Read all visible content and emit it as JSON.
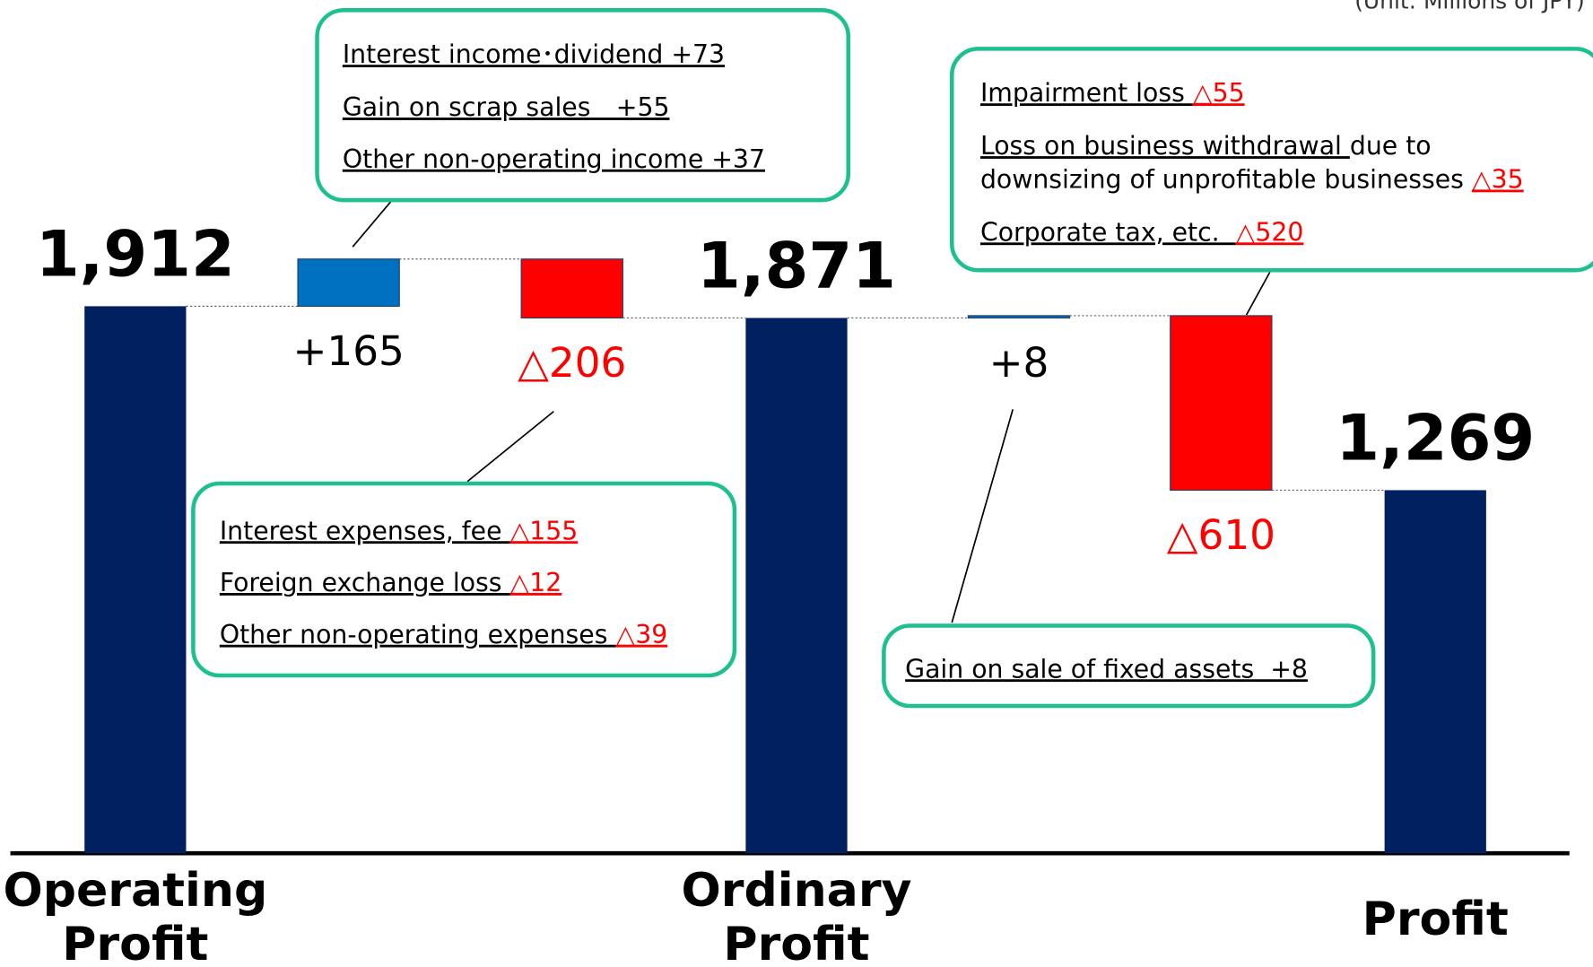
{
  "chart_data": {
    "type": "waterfall",
    "subtitle": "(Unit: Millions of JPY)",
    "categories": [
      "Operating Profit",
      null,
      null,
      "Ordinary Profit",
      null,
      null,
      "Profit"
    ],
    "measures": [
      "total",
      "relative",
      "relative",
      "total",
      "relative",
      "relative",
      "total"
    ],
    "values": [
      1912,
      165,
      -206,
      1871,
      8,
      -610,
      1269
    ],
    "value_labels": [
      "1,912",
      "+165",
      "△206",
      "1,871",
      "+8",
      "△610",
      "1,269"
    ],
    "colors": {
      "total": "#002060",
      "increase": "#0070c0",
      "decrease": "#ff0000"
    },
    "label_colors": {
      "total": "#000000",
      "increase": "#000000",
      "decrease": "#ff0000"
    },
    "annotations": [
      {
        "target": 1,
        "lines": [
          [
            {
              "text": "Interest income･dividend +73",
              "underline": true
            }
          ],
          [
            {
              "text": "Gain on scrap sales　+55",
              "underline": true
            }
          ],
          [
            {
              "text": "Other non-operating income +37",
              "underline": true
            }
          ]
        ]
      },
      {
        "target": 2,
        "lines": [
          [
            {
              "text": "Interest expenses, fee ",
              "underline": true
            },
            {
              "text": "△155",
              "underline": true,
              "color": "#ff0000"
            }
          ],
          [
            {
              "text": "Foreign exchange loss ",
              "underline": true
            },
            {
              "text": "△12",
              "underline": true,
              "color": "#ff0000"
            }
          ],
          [
            {
              "text": "Other non-operating expenses ",
              "underline": true
            },
            {
              "text": "△39",
              "underline": true,
              "color": "#ff0000"
            }
          ]
        ]
      },
      {
        "target": 5,
        "lines": [
          [
            {
              "text": "Impairment loss ",
              "underline": true
            },
            {
              "text": "△55",
              "underline": true,
              "color": "#ff0000"
            }
          ],
          [
            {
              "text": "Loss on business withdrawal ",
              "underline": true
            },
            {
              "text": "due to",
              "underline": false
            }
          ],
          [
            {
              "text": "downsizing of unprofitable businesses ",
              "underline": false
            },
            {
              "text": "△35",
              "underline": true,
              "color": "#ff0000"
            }
          ],
          [
            {
              "text": "Corporate tax, etc.  ",
              "underline": true
            },
            {
              "text": "△520",
              "underline": true,
              "color": "#ff0000"
            }
          ]
        ]
      },
      {
        "target": 4,
        "lines": [
          [
            {
              "text": "Gain on sale of fixed assets  +8",
              "underline": true
            }
          ]
        ]
      }
    ]
  }
}
